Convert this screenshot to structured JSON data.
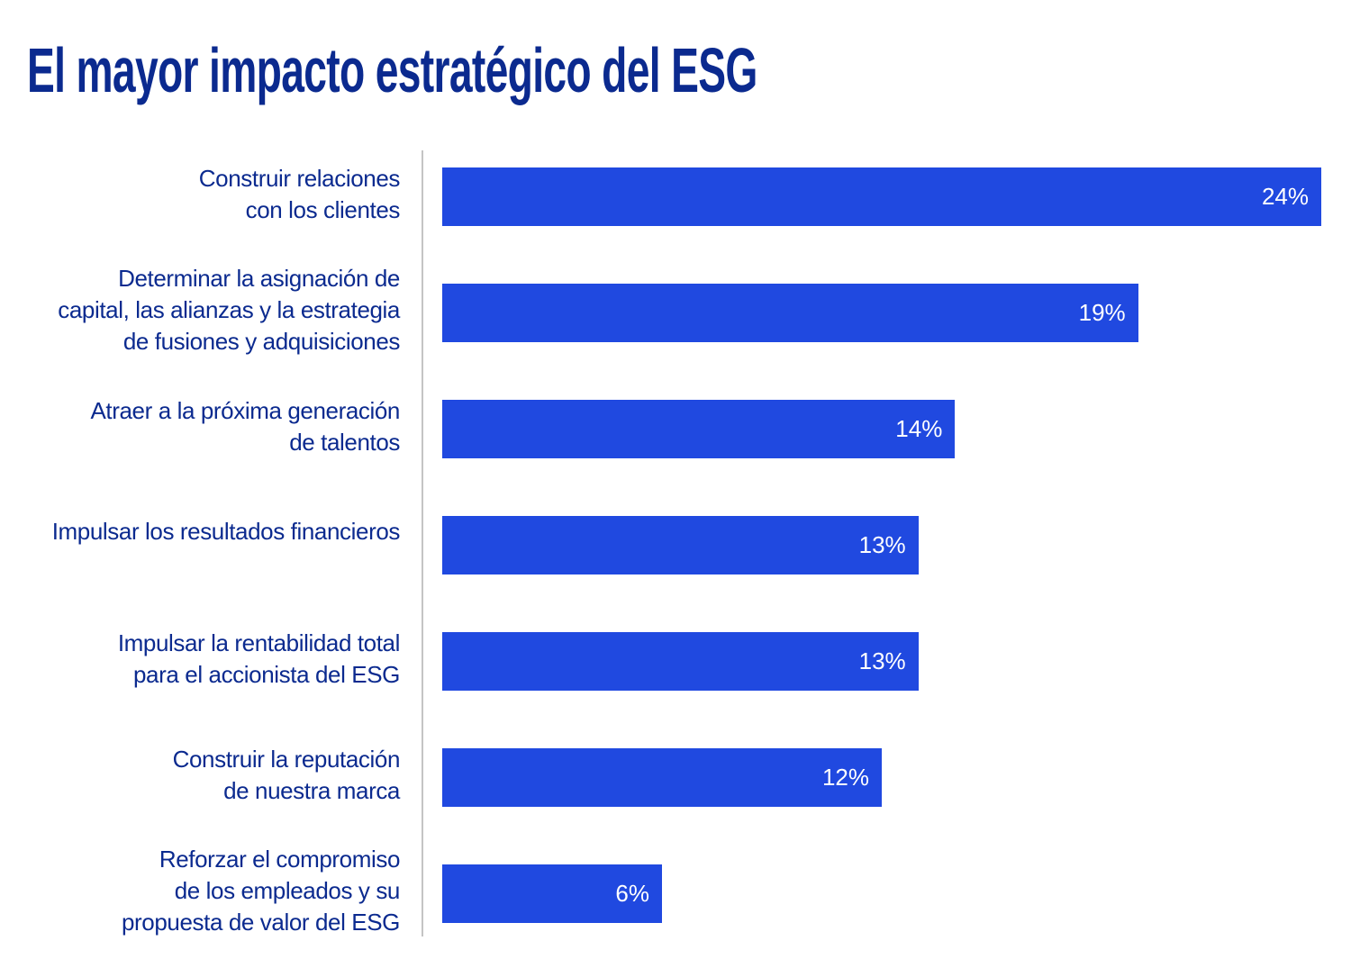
{
  "chart_data": {
    "type": "bar",
    "orientation": "horizontal",
    "title": "El mayor impacto estratégico del ESG",
    "xlabel": "",
    "ylabel": "",
    "xlim": [
      0,
      24
    ],
    "grid": false,
    "categories": [
      "Construir relaciones\ncon los clientes",
      "Determinar la asignación de\ncapital, las alianzas y la estrategia\nde fusiones y adquisiciones",
      "Atraer a la próxima generación\nde talentos",
      "Impulsar los resultados financieros",
      "Impulsar la rentabilidad total\npara el accionista del ESG",
      "Construir la reputación\nde nuestra marca",
      "Reforzar el compromiso\nde los empleados y su\npropuesta de valor del ESG"
    ],
    "values": [
      24,
      19,
      14,
      13,
      13,
      12,
      6
    ],
    "data_labels": [
      "24%",
      "19%",
      "14%",
      "13%",
      "13%",
      "12%",
      "6%"
    ],
    "colors": {
      "bar": "#2049e0",
      "text": "#0b2a8f",
      "axis": "#c4c4c4"
    }
  }
}
